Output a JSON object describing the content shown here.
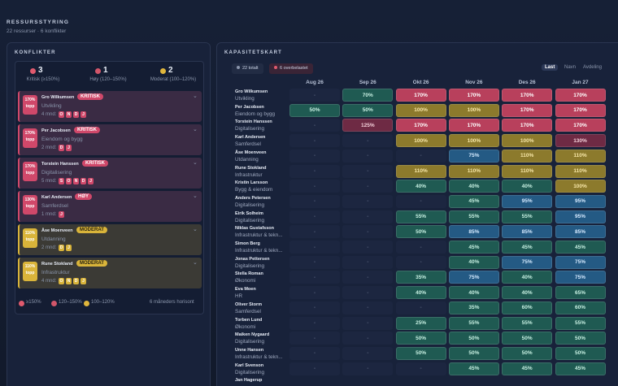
{
  "header": {
    "title": "RESSURSSTYRING",
    "subtitle": "22 ressurser · 6 konflikter"
  },
  "conflicts": {
    "title": "KONFLIKTER",
    "summary": [
      {
        "count": 3,
        "label": "Kritisk (≥150%)"
      },
      {
        "count": 1,
        "label": "Høy (120–150%)"
      },
      {
        "count": 2,
        "label": "Moderat (100–120%)"
      }
    ],
    "cards": [
      {
        "peak": "170%",
        "peak_label": "topp",
        "name": "Gro Wilkumsen",
        "severity": "KRITISK",
        "dept": "Utvikling",
        "months_label": "4 mnd:",
        "months": [
          "O",
          "N",
          "D",
          "J"
        ]
      },
      {
        "peak": "170%",
        "peak_label": "topp",
        "name": "Per Jacobsen",
        "severity": "KRITISK",
        "dept": "Eiendom og bygg",
        "months_label": "2 mnd:",
        "months": [
          "D",
          "J"
        ]
      },
      {
        "peak": "170%",
        "peak_label": "topp",
        "name": "Torstein Hanssen",
        "severity": "KRITISK",
        "dept": "Digitalisering",
        "months_label": "5 mnd:",
        "months": [
          "S",
          "O",
          "N",
          "D",
          "J"
        ]
      },
      {
        "peak": "130%",
        "peak_label": "topp",
        "name": "Karl Andersen",
        "severity": "HØY",
        "dept": "Samferdsel",
        "months_label": "1 mnd:",
        "months": [
          "J"
        ]
      },
      {
        "peak": "110%",
        "peak_label": "topp",
        "name": "Åse Moenveen",
        "severity": "MODERAT",
        "dept": "Utdanning",
        "months_label": "2 mnd:",
        "months": [
          "D",
          "J"
        ]
      },
      {
        "peak": "110%",
        "peak_label": "topp",
        "name": "Rune Stokland",
        "severity": "MODERAT",
        "dept": "Infrastruktur",
        "months_label": "4 mnd:",
        "months": [
          "O",
          "N",
          "D",
          "J"
        ]
      }
    ],
    "legend": [
      "≥150%",
      "120–150%",
      "100–120%"
    ],
    "horizon": "6 måneders horisont"
  },
  "capacity": {
    "title": "KAPASITETSKART",
    "chips": [
      "22 totalt",
      "6 overbelastet"
    ],
    "sort": [
      "Last",
      "Navn",
      "Avdeling"
    ],
    "months": [
      "Aug 26",
      "Sep 26",
      "Okt 26",
      "Nov 26",
      "Des 26",
      "Jan 27"
    ],
    "rows": [
      {
        "name": "Gro Wilkumsen",
        "dept": "Utvikling",
        "cells": [
          "-",
          "70%",
          "170%",
          "170%",
          "170%",
          "170%"
        ]
      },
      {
        "name": "Per Jacobsen",
        "dept": "Eiendom og bygg",
        "cells": [
          "50%",
          "50%",
          "100%",
          "100%",
          "170%",
          "170%"
        ]
      },
      {
        "name": "Torstein Hanssen",
        "dept": "Digitalisering",
        "cells": [
          "-",
          "125%",
          "170%",
          "170%",
          "170%",
          "170%"
        ]
      },
      {
        "name": "Karl Andersen",
        "dept": "Samferdsel",
        "cells": [
          "-",
          "-",
          "100%",
          "100%",
          "100%",
          "130%"
        ]
      },
      {
        "name": "Åse Moenveen",
        "dept": "Utdanning",
        "cells": [
          "-",
          "-",
          "-",
          "75%",
          "110%",
          "110%"
        ]
      },
      {
        "name": "Rune Stokland",
        "dept": "Infrastruktur",
        "cells": [
          "-",
          "-",
          "110%",
          "110%",
          "110%",
          "110%"
        ]
      },
      {
        "name": "Kristin Larsson",
        "dept": "Bygg & eiendom",
        "cells": [
          "-",
          "-",
          "40%",
          "40%",
          "40%",
          "100%"
        ]
      },
      {
        "name": "Anders Petersen",
        "dept": "Digitalisering",
        "cells": [
          "-",
          "-",
          "-",
          "45%",
          "95%",
          "95%"
        ]
      },
      {
        "name": "Eirik Solheim",
        "dept": "Digitalisering",
        "cells": [
          "-",
          "-",
          "55%",
          "55%",
          "55%",
          "95%"
        ]
      },
      {
        "name": "Niklas Gustafsson",
        "dept": "Infrastruktur & tekn...",
        "cells": [
          "-",
          "-",
          "50%",
          "85%",
          "85%",
          "85%"
        ]
      },
      {
        "name": "Simon Berg",
        "dept": "Infrastruktur & tekn...",
        "cells": [
          "-",
          "-",
          "-",
          "45%",
          "45%",
          "45%"
        ]
      },
      {
        "name": "Jonas Pettersen",
        "dept": "Digitalisering",
        "cells": [
          "-",
          "-",
          "-",
          "40%",
          "75%",
          "75%"
        ]
      },
      {
        "name": "Stella Roman",
        "dept": "Økonomi",
        "cells": [
          "-",
          "-",
          "35%",
          "75%",
          "40%",
          "75%"
        ]
      },
      {
        "name": "Eva Moen",
        "dept": "HR",
        "cells": [
          "-",
          "-",
          "40%",
          "40%",
          "40%",
          "65%"
        ]
      },
      {
        "name": "Oliver Storm",
        "dept": "Samferdsel",
        "cells": [
          "-",
          "-",
          "-",
          "35%",
          "60%",
          "60%"
        ]
      },
      {
        "name": "Torben Lund",
        "dept": "Økonomi",
        "cells": [
          "-",
          "-",
          "25%",
          "55%",
          "55%",
          "55%"
        ]
      },
      {
        "name": "Maiken Nygaard",
        "dept": "Digitalisering",
        "cells": [
          "-",
          "-",
          "50%",
          "50%",
          "50%",
          "50%"
        ]
      },
      {
        "name": "Unne Hansen",
        "dept": "Infrastruktur & tekn...",
        "cells": [
          "-",
          "-",
          "50%",
          "50%",
          "50%",
          "50%"
        ]
      },
      {
        "name": "Karl Svenson",
        "dept": "Digitalisering",
        "cells": [
          "-",
          "-",
          "-",
          "45%",
          "45%",
          "45%"
        ]
      },
      {
        "name": "Jan Hagerup"
      }
    ]
  }
}
